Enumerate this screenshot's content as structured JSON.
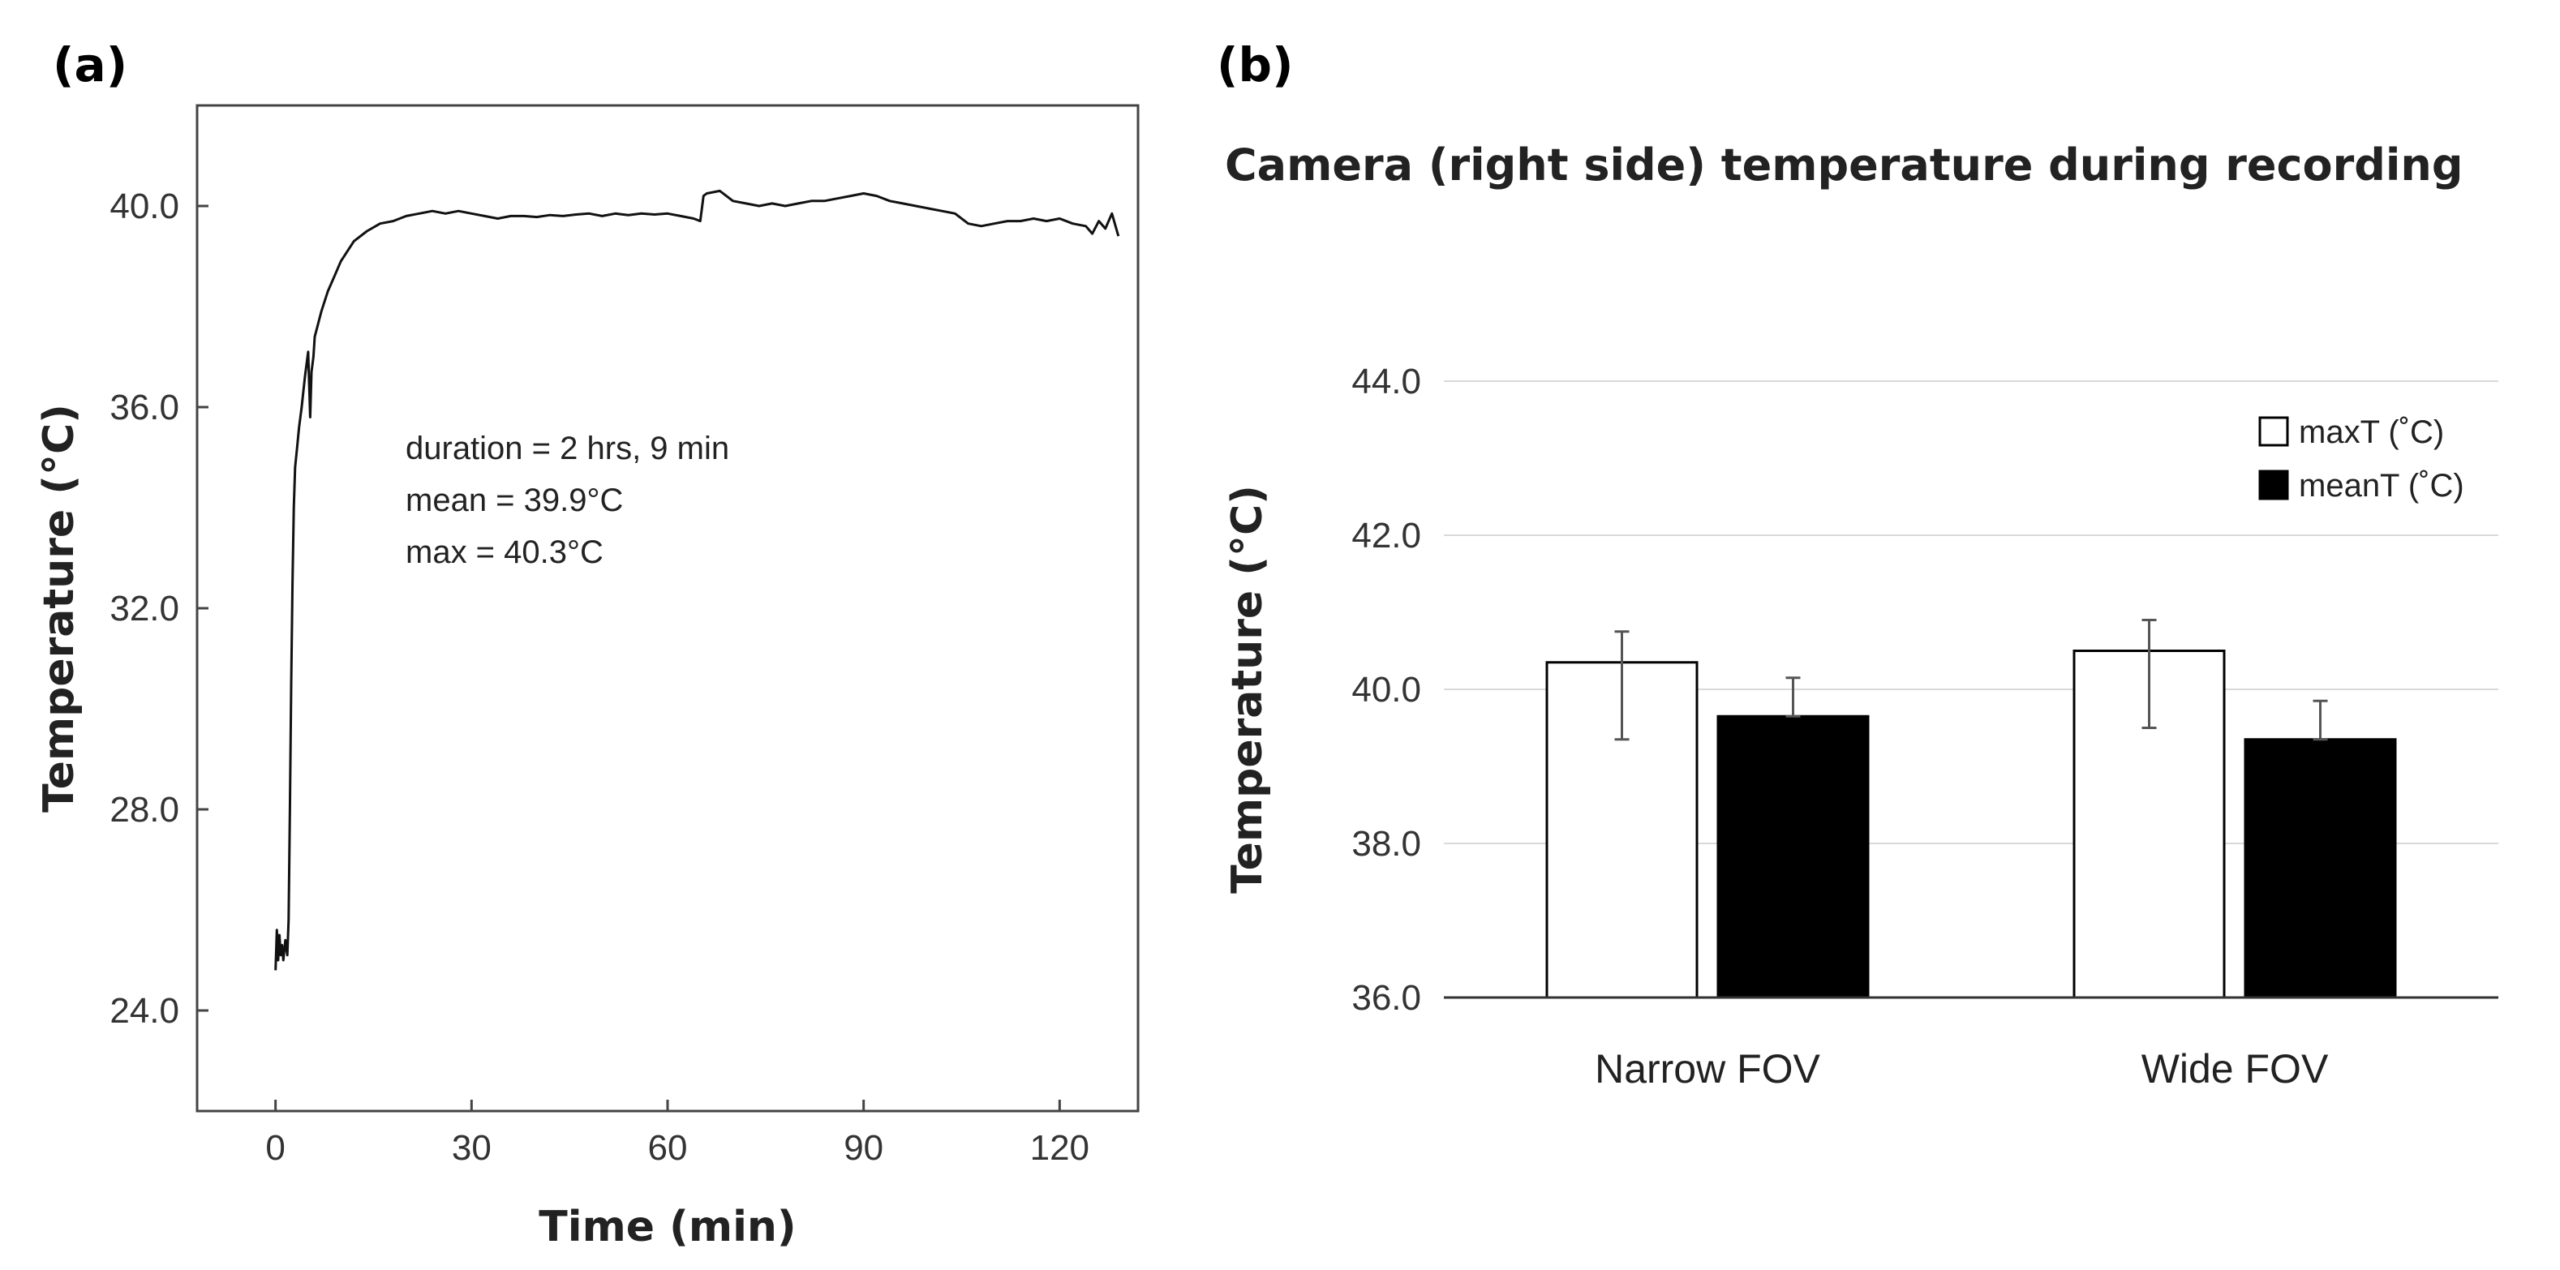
{
  "panels": {
    "a_label": "(a)",
    "b_label": "(b)"
  },
  "chart_data": [
    {
      "type": "line",
      "title": "",
      "xlabel": "Time (min)",
      "ylabel": "Temperature (°C)",
      "xlim": [
        -12,
        132
      ],
      "ylim": [
        22.0,
        42.0
      ],
      "xticks": [
        0,
        30,
        60,
        90,
        120
      ],
      "xtick_labels": [
        "0",
        "30",
        "60",
        "90",
        "120"
      ],
      "yticks": [
        24.0,
        28.0,
        32.0,
        36.0,
        40.0
      ],
      "ytick_labels": [
        "24.0",
        "28.0",
        "32.0",
        "36.0",
        "40.0"
      ],
      "grid": false,
      "annotations": [
        "duration = 2 hrs, 9 min",
        "mean = 39.9°C",
        "max = 40.3°C"
      ],
      "series": [
        {
          "x": [
            0,
            0.2,
            0.4,
            0.6,
            0.8,
            1.0,
            1.2,
            1.5,
            1.8,
            2.0,
            2.2,
            2.4,
            2.6,
            2.8,
            3.0,
            3.3,
            3.6,
            4.0,
            4.5,
            5.0,
            5.3,
            5.5,
            5.8,
            6.0,
            7,
            8,
            9,
            10,
            12,
            14,
            16,
            18,
            20,
            22,
            24,
            26,
            28,
            30,
            32,
            34,
            36,
            38,
            40,
            42,
            44,
            46,
            48,
            50,
            52,
            54,
            56,
            58,
            60,
            62,
            64,
            65,
            65.5,
            66,
            68,
            70,
            72,
            74,
            76,
            78,
            80,
            82,
            84,
            86,
            88,
            90,
            92,
            94,
            96,
            98,
            100,
            102,
            104,
            106,
            108,
            110,
            112,
            114,
            116,
            118,
            120,
            122,
            124,
            125,
            126,
            127,
            128,
            129
          ],
          "y": [
            24.8,
            25.6,
            25.0,
            25.5,
            25.1,
            25.3,
            25.0,
            25.4,
            25.1,
            25.8,
            28.0,
            30.5,
            32.5,
            34.0,
            34.8,
            35.2,
            35.6,
            36.0,
            36.6,
            37.1,
            35.8,
            36.7,
            37.0,
            37.4,
            37.9,
            38.3,
            38.6,
            38.9,
            39.3,
            39.5,
            39.65,
            39.7,
            39.8,
            39.85,
            39.9,
            39.85,
            39.9,
            39.85,
            39.8,
            39.75,
            39.8,
            39.8,
            39.78,
            39.82,
            39.8,
            39.83,
            39.85,
            39.8,
            39.85,
            39.82,
            39.85,
            39.83,
            39.85,
            39.8,
            39.75,
            39.7,
            40.2,
            40.25,
            40.3,
            40.1,
            40.05,
            40.0,
            40.05,
            40.0,
            40.05,
            40.1,
            40.1,
            40.15,
            40.2,
            40.25,
            40.2,
            40.1,
            40.05,
            40.0,
            39.95,
            39.9,
            39.85,
            39.65,
            39.6,
            39.65,
            39.7,
            39.7,
            39.75,
            39.7,
            39.75,
            39.65,
            39.6,
            39.45,
            39.7,
            39.55,
            39.85,
            39.4
          ]
        }
      ]
    },
    {
      "type": "bar",
      "title": "Camera (right side) temperature during recording",
      "xlabel": "",
      "ylabel": "Temperature (°C)",
      "ylim": [
        36.0,
        44.0
      ],
      "yticks": [
        36.0,
        38.0,
        40.0,
        42.0,
        44.0
      ],
      "ytick_labels": [
        "36.0",
        "38.0",
        "40.0",
        "42.0",
        "44.0"
      ],
      "grid": true,
      "legend_position": "top-right",
      "categories": [
        "Narrow FOV",
        "Wide FOV"
      ],
      "series": [
        {
          "name": "maxT (˚C)",
          "values": [
            40.35,
            40.5
          ],
          "error_low": [
            1.0,
            1.0
          ],
          "error_high": [
            0.4,
            0.4
          ],
          "color": "#ffffff"
        },
        {
          "name": "meanT (˚C)",
          "values": [
            39.65,
            39.35
          ],
          "error_low": [
            0.0,
            0.0
          ],
          "error_high": [
            0.5,
            0.5
          ],
          "color": "#000000"
        }
      ]
    }
  ]
}
